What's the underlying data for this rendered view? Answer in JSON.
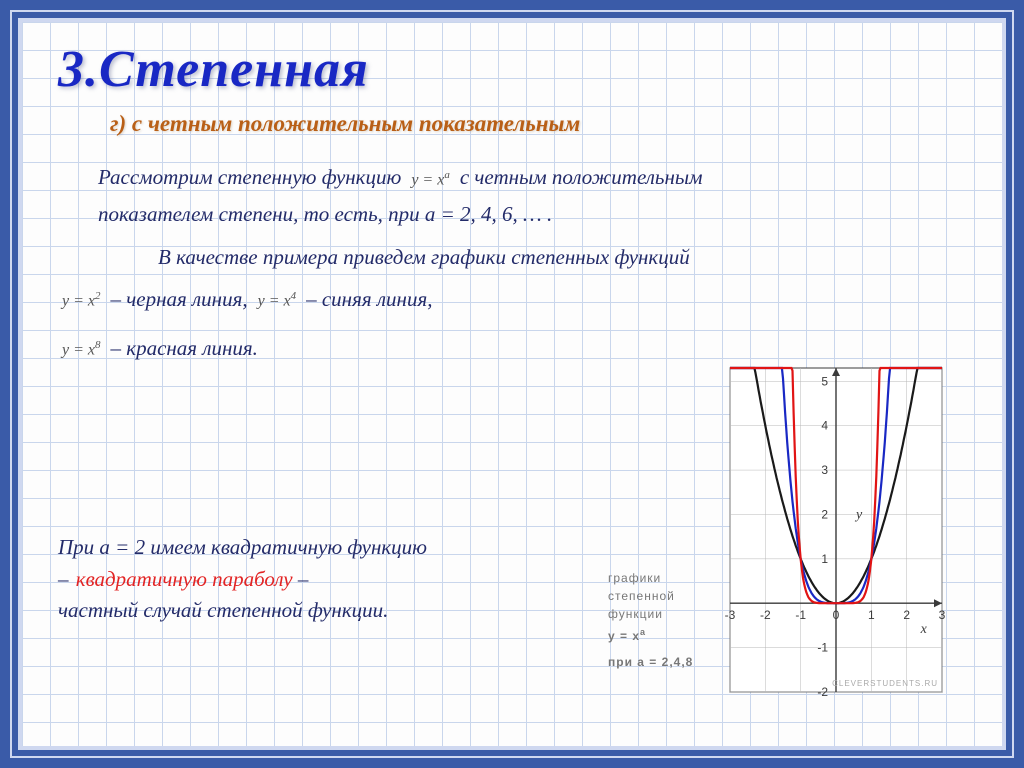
{
  "title": "3.Степенная",
  "subtitle": "г) с четным положительным показательным",
  "para1_a": "Рассмотрим степенную функцию",
  "formula_yxa": "y = x",
  "formula_yxa_sup": "a",
  "para1_b": "с четным положительным",
  "para2": "показателем степени, то есть, при а = 2, 4, 6, … .",
  "para3": "В качестве примера приведем графики степенных функций",
  "line_black_formula": "y = x",
  "line_black_sup": "2",
  "line_black_text": "– черная линия,",
  "line_blue_formula": "y = x",
  "line_blue_sup": "4",
  "line_blue_text": "– синяя линия,",
  "line_red_formula": "y = x",
  "line_red_sup": "8",
  "line_red_text": "– красная линия.",
  "bottom_line1": "При а = 2 имеем квадратичную функцию",
  "bottom_line2a": "–",
  "bottom_red_phrase": "квадратичную параболу",
  "bottom_line2c": "–",
  "bottom_line3": "частный случай степенной функции.",
  "chart": {
    "xlim": [
      -3,
      3
    ],
    "ylim": [
      -2,
      5.3
    ],
    "xticks": [
      -3,
      -2,
      -1,
      0,
      1,
      2,
      3
    ],
    "yticks": [
      -2,
      -1,
      0,
      1,
      2,
      3,
      4,
      5
    ],
    "axis_labels_x": [
      "-3",
      "-2",
      "-1",
      "0",
      "1",
      "2",
      "3"
    ],
    "axis_labels_y": [
      "-2",
      "-1",
      "",
      "1",
      "2",
      "3",
      "4",
      "5"
    ],
    "curve_black_color": "#1a1a1a",
    "curve_blue_color": "#1928c4",
    "curve_red_color": "#e11414",
    "grid_color": "#b8b8b8",
    "axis_color": "#3a3a3a",
    "y_label": "y",
    "x_label": "x",
    "caption1": "графики",
    "caption2": "степенной",
    "caption3": "функции",
    "caption4_a": "y = x",
    "caption4_sup": "a",
    "caption5": "при а = 2,4,8",
    "credit": "CLEVERSTUDENTS.RU",
    "tick_fontsize": 12,
    "caption_fontsize": 12,
    "caption_color": "#777"
  }
}
